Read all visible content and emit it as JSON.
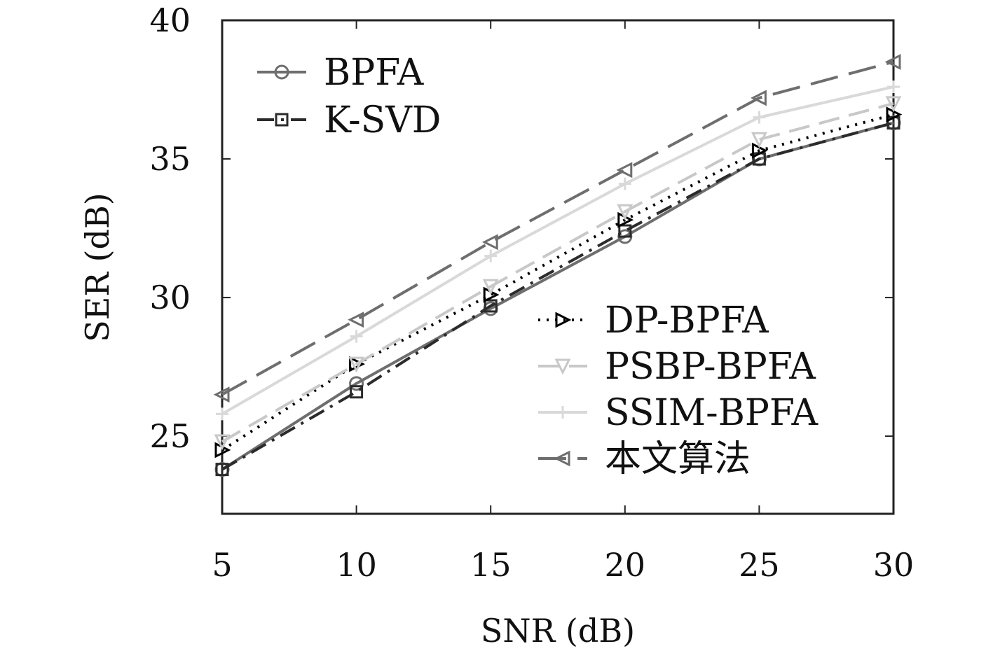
{
  "chart_data": {
    "type": "line",
    "title": "",
    "xlabel": "SNR (dB)",
    "ylabel": "SER (dB)",
    "x": [
      5,
      10,
      15,
      20,
      25,
      30
    ],
    "xlim": [
      5,
      30
    ],
    "ylim": [
      22.2,
      40
    ],
    "xticks": [
      "5",
      "10",
      "15",
      "20",
      "25",
      "30"
    ],
    "yticks": [
      "25",
      "30",
      "35",
      "40"
    ],
    "grid": false,
    "legend_placement": "top-left and lower-right",
    "series": [
      {
        "name": "BPFA",
        "values": [
          23.8,
          26.9,
          29.6,
          32.2,
          35.0,
          36.3
        ],
        "color": "#6e6e6e",
        "dash": "solid",
        "marker": "circle"
      },
      {
        "name": "K-SVD",
        "values": [
          23.8,
          26.6,
          29.7,
          32.4,
          35.0,
          36.3
        ],
        "color": "#2b2b2b",
        "dash": "dashdot",
        "marker": "square"
      },
      {
        "name": "DP-BPFA",
        "values": [
          24.5,
          27.6,
          30.1,
          32.8,
          35.3,
          36.6
        ],
        "color": "#000000",
        "dash": "dotted",
        "marker": "triangle-right"
      },
      {
        "name": "PSBP-BPFA",
        "values": [
          24.8,
          27.6,
          30.4,
          33.1,
          35.7,
          37.0
        ],
        "color": "#c8c8c8",
        "dash": "dashed",
        "marker": "triangle-down"
      },
      {
        "name": "SSIM-BPFA",
        "values": [
          25.8,
          28.6,
          31.5,
          34.1,
          36.5,
          37.6
        ],
        "color": "#d9d9d9",
        "dash": "solid",
        "marker": "plus"
      },
      {
        "name": "本文算法",
        "values": [
          26.5,
          29.2,
          32.0,
          34.6,
          37.2,
          38.5
        ],
        "color": "#6e6e6e",
        "dash": "longdash",
        "marker": "triangle-left"
      }
    ]
  }
}
